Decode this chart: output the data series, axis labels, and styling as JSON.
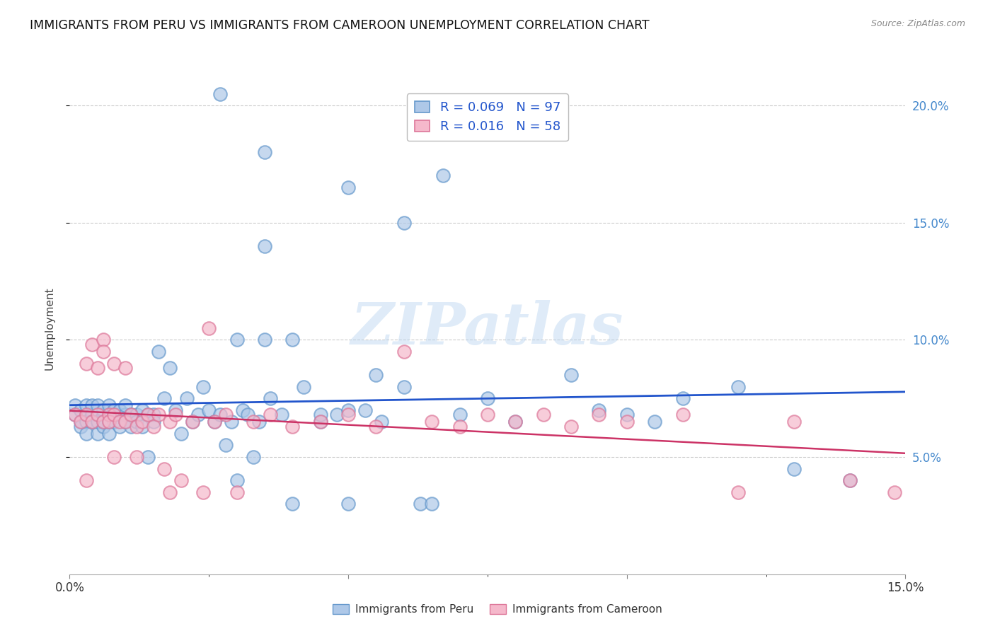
{
  "title": "IMMIGRANTS FROM PERU VS IMMIGRANTS FROM CAMEROON UNEMPLOYMENT CORRELATION CHART",
  "source": "Source: ZipAtlas.com",
  "ylabel": "Unemployment",
  "watermark": "ZIPatlas",
  "xlim": [
    0.0,
    0.15
  ],
  "ylim": [
    0.0,
    0.21
  ],
  "yticks": [
    0.05,
    0.1,
    0.15,
    0.2
  ],
  "ytick_labels": [
    "5.0%",
    "10.0%",
    "15.0%",
    "20.0%"
  ],
  "xticks": [
    0.0,
    0.05,
    0.1,
    0.15
  ],
  "peru_color": "#aec8e8",
  "peru_edge_color": "#6699cc",
  "cameroon_color": "#f5b8cb",
  "cameroon_edge_color": "#dd7799",
  "peru_R": 0.069,
  "peru_N": 97,
  "cameroon_R": 0.016,
  "cameroon_N": 58,
  "trend_peru_color": "#2255cc",
  "trend_cameroon_color": "#cc3366",
  "background_color": "#ffffff",
  "grid_color": "#cccccc",
  "title_color": "#111111",
  "right_axis_color": "#4488cc",
  "legend_text_color": "#2255cc",
  "peru_x": [
    0.001,
    0.001,
    0.002,
    0.002,
    0.002,
    0.003,
    0.003,
    0.003,
    0.003,
    0.004,
    0.004,
    0.004,
    0.005,
    0.005,
    0.005,
    0.005,
    0.006,
    0.006,
    0.006,
    0.006,
    0.007,
    0.007,
    0.007,
    0.007,
    0.008,
    0.008,
    0.008,
    0.009,
    0.009,
    0.009,
    0.01,
    0.01,
    0.01,
    0.011,
    0.011,
    0.012,
    0.012,
    0.013,
    0.013,
    0.014,
    0.014,
    0.015,
    0.015,
    0.016,
    0.017,
    0.018,
    0.019,
    0.02,
    0.021,
    0.022,
    0.023,
    0.024,
    0.025,
    0.026,
    0.027,
    0.028,
    0.029,
    0.03,
    0.031,
    0.032,
    0.033,
    0.034,
    0.035,
    0.036,
    0.038,
    0.04,
    0.042,
    0.045,
    0.048,
    0.05,
    0.053,
    0.056,
    0.06,
    0.063,
    0.067,
    0.03,
    0.035,
    0.04,
    0.045,
    0.05,
    0.055,
    0.06,
    0.065,
    0.07,
    0.075,
    0.08,
    0.09,
    0.095,
    0.1,
    0.105,
    0.11,
    0.12,
    0.13,
    0.14,
    0.027,
    0.035,
    0.05
  ],
  "peru_y": [
    0.068,
    0.072,
    0.065,
    0.07,
    0.063,
    0.068,
    0.072,
    0.065,
    0.06,
    0.068,
    0.065,
    0.072,
    0.068,
    0.06,
    0.065,
    0.072,
    0.068,
    0.063,
    0.07,
    0.065,
    0.068,
    0.072,
    0.06,
    0.065,
    0.068,
    0.07,
    0.065,
    0.068,
    0.063,
    0.07,
    0.068,
    0.065,
    0.072,
    0.068,
    0.063,
    0.068,
    0.065,
    0.07,
    0.063,
    0.068,
    0.05,
    0.068,
    0.065,
    0.095,
    0.075,
    0.088,
    0.07,
    0.06,
    0.075,
    0.065,
    0.068,
    0.08,
    0.07,
    0.065,
    0.068,
    0.055,
    0.065,
    0.04,
    0.07,
    0.068,
    0.05,
    0.065,
    0.1,
    0.075,
    0.068,
    0.03,
    0.08,
    0.065,
    0.068,
    0.03,
    0.07,
    0.065,
    0.15,
    0.03,
    0.17,
    0.1,
    0.14,
    0.1,
    0.068,
    0.07,
    0.085,
    0.08,
    0.03,
    0.068,
    0.075,
    0.065,
    0.085,
    0.07,
    0.068,
    0.065,
    0.075,
    0.08,
    0.045,
    0.04,
    0.205,
    0.18,
    0.165
  ],
  "cameroon_x": [
    0.001,
    0.002,
    0.003,
    0.003,
    0.004,
    0.004,
    0.005,
    0.005,
    0.006,
    0.006,
    0.007,
    0.007,
    0.008,
    0.008,
    0.009,
    0.01,
    0.01,
    0.011,
    0.012,
    0.013,
    0.014,
    0.015,
    0.016,
    0.017,
    0.018,
    0.019,
    0.02,
    0.022,
    0.024,
    0.026,
    0.028,
    0.03,
    0.033,
    0.036,
    0.04,
    0.045,
    0.05,
    0.055,
    0.06,
    0.065,
    0.07,
    0.075,
    0.08,
    0.085,
    0.09,
    0.095,
    0.1,
    0.11,
    0.12,
    0.13,
    0.14,
    0.148,
    0.003,
    0.006,
    0.008,
    0.012,
    0.018,
    0.025
  ],
  "cameroon_y": [
    0.068,
    0.065,
    0.09,
    0.068,
    0.098,
    0.065,
    0.068,
    0.088,
    0.065,
    0.1,
    0.068,
    0.065,
    0.09,
    0.068,
    0.065,
    0.088,
    0.065,
    0.068,
    0.063,
    0.065,
    0.068,
    0.063,
    0.068,
    0.045,
    0.065,
    0.068,
    0.04,
    0.065,
    0.035,
    0.065,
    0.068,
    0.035,
    0.065,
    0.068,
    0.063,
    0.065,
    0.068,
    0.063,
    0.095,
    0.065,
    0.063,
    0.068,
    0.065,
    0.068,
    0.063,
    0.068,
    0.065,
    0.068,
    0.035,
    0.065,
    0.04,
    0.035,
    0.04,
    0.095,
    0.05,
    0.05,
    0.035,
    0.105
  ]
}
